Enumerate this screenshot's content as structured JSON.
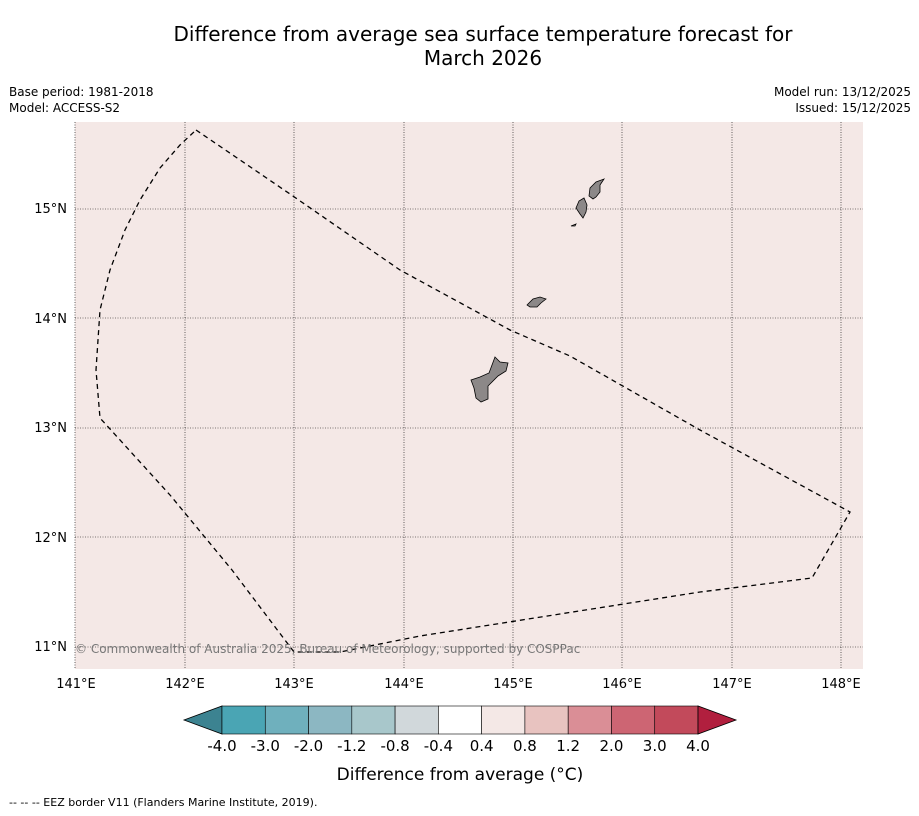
{
  "title_line1": "Difference from average sea surface temperature forecast for",
  "title_line2": "March 2026",
  "base_period": "Base period: 1981-2018",
  "model": "Model: ACCESS-S2",
  "model_run": "Model run: 13/12/2025",
  "issued": "Issued: 15/12/2025",
  "copyright": "© Commonwealth of Australia 2025, Bureau of Meteorology, supported by COSPPac",
  "map": {
    "lat_labels": [
      "15°N",
      "14°N",
      "13°N",
      "12°N",
      "11°N"
    ],
    "lon_labels": [
      "141°E",
      "142°E",
      "143°E",
      "144°E",
      "145°E",
      "146°E",
      "147°E",
      "148°E"
    ],
    "ocean_color": "#f4e8e6",
    "land_color": "#8c8888",
    "anomaly_class": "0.4 to 0.8"
  },
  "colorbar": {
    "title": "Difference from average (°C)",
    "ticks": [
      "-4.0",
      "-3.0",
      "-2.0",
      "-1.2",
      "-0.8",
      "-0.4",
      "0.4",
      "0.8",
      "1.2",
      "2.0",
      "3.0",
      "4.0"
    ],
    "colors": [
      "#3c8391",
      "#4aa5b4",
      "#6fb0bd",
      "#8cb7c2",
      "#a8c7cb",
      "#d1d8db",
      "#ffffff",
      "#f4e8e6",
      "#e8c3c0",
      "#da8e96",
      "#cd6573",
      "#c24a5b",
      "#b11f3e"
    ]
  },
  "legend_text": "--  --  -- EEZ border V11 (Flanders Marine Institute, 2019)."
}
